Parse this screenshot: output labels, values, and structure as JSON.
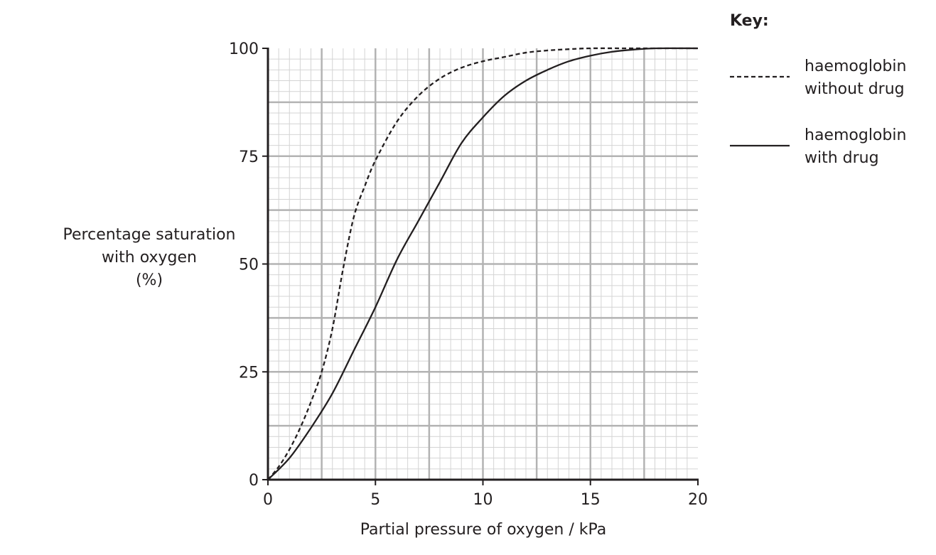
{
  "chart_data": {
    "type": "line",
    "xlabel": "Partial pressure of oxygen / kPa",
    "ylabel_lines": [
      "Percentage saturation",
      "with oxygen",
      "(%)"
    ],
    "xlim": [
      0,
      20
    ],
    "ylim": [
      0,
      100
    ],
    "x_ticks": [
      0,
      5,
      10,
      15,
      20
    ],
    "y_ticks": [
      0,
      25,
      50,
      75,
      100
    ],
    "x_tick_labels": [
      "0",
      "5",
      "10",
      "15",
      "20"
    ],
    "y_tick_labels": [
      "0",
      "25",
      "50",
      "75",
      "100"
    ],
    "grid": true,
    "legend_placement": "top-right",
    "legend_title": "Key:",
    "series": [
      {
        "name": "haemoglobin without drug",
        "legend_lines": [
          "haemoglobin",
          "without drug"
        ],
        "style": "dashed",
        "points": [
          [
            0,
            0
          ],
          [
            0.5,
            3
          ],
          [
            1,
            7
          ],
          [
            1.5,
            12
          ],
          [
            2,
            18
          ],
          [
            2.5,
            25
          ],
          [
            3,
            35
          ],
          [
            3.5,
            49
          ],
          [
            4,
            61
          ],
          [
            4.5,
            68
          ],
          [
            5,
            74
          ],
          [
            6,
            83
          ],
          [
            7,
            89
          ],
          [
            8,
            93
          ],
          [
            9,
            95.5
          ],
          [
            10,
            97
          ],
          [
            11,
            98
          ],
          [
            12,
            99
          ],
          [
            13,
            99.5
          ],
          [
            14,
            99.8
          ],
          [
            15,
            100
          ],
          [
            17,
            100
          ],
          [
            20,
            100
          ]
        ]
      },
      {
        "name": "haemoglobin with drug",
        "legend_lines": [
          "haemoglobin",
          "with drug"
        ],
        "style": "solid",
        "points": [
          [
            0,
            0
          ],
          [
            1,
            5
          ],
          [
            2,
            12
          ],
          [
            3,
            20
          ],
          [
            4,
            30
          ],
          [
            5,
            40
          ],
          [
            6,
            51
          ],
          [
            7,
            60
          ],
          [
            8,
            69
          ],
          [
            9,
            78
          ],
          [
            10,
            84
          ],
          [
            11,
            89
          ],
          [
            12,
            92.5
          ],
          [
            13,
            95
          ],
          [
            14,
            97
          ],
          [
            15,
            98.3
          ],
          [
            16,
            99.2
          ],
          [
            17,
            99.7
          ],
          [
            18,
            100
          ],
          [
            20,
            100
          ]
        ]
      }
    ],
    "colors": {
      "line": "#231f20",
      "grid_major": "#b3b3b3",
      "grid_minor": "#d4d4d4",
      "axis": "#231f20"
    }
  }
}
